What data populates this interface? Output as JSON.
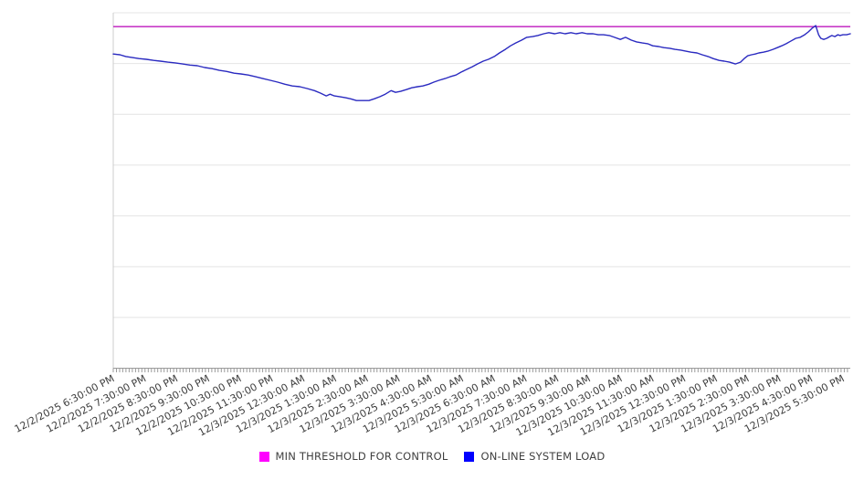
{
  "page": {
    "background": "#ffffff"
  },
  "legend": {
    "position": "bottom-center",
    "items": [
      {
        "label": "MIN THRESHOLD FOR CONTROL",
        "color": "#ff00ff"
      },
      {
        "label": "ON-LINE SYSTEM LOAD",
        "color": "#0000ff"
      }
    ]
  },
  "chart_data": {
    "type": "line",
    "title": "",
    "xlabel": "",
    "ylabel": "",
    "grid": "horizontal-only",
    "legend_position": "bottom-center",
    "colors": {
      "threshold_line": "#c73bc7",
      "load_line": "#2a2ac0",
      "gridline": "#e4e4e4",
      "axis": "#9b9b9b",
      "label_text": "#3c3c3c"
    },
    "x_axis": {
      "label_interval": "1 hour",
      "minor_ticks": "dense (~6 min)",
      "labels": [
        "12/2/2025 6:30:00 PM",
        "12/2/2025 7:30:00 PM",
        "12/2/2025 8:30:00 PM",
        "12/2/2025 9:30:00 PM",
        "12/2/2025 10:30:00 PM",
        "12/2/2025 11:30:00 PM",
        "12/3/2025 12:30:00 AM",
        "12/3/2025 1:30:00 AM",
        "12/3/2025 2:30:00 AM",
        "12/3/2025 3:30:00 AM",
        "12/3/2025 4:30:00 AM",
        "12/3/2025 5:30:00 AM",
        "12/3/2025 6:30:00 AM",
        "12/3/2025 7:30:00 AM",
        "12/3/2025 8:30:00 AM",
        "12/3/2025 9:30:00 AM",
        "12/3/2025 10:30:00 AM",
        "12/3/2025 11:30:00 AM",
        "12/3/2025 12:30:00 PM",
        "12/3/2025 1:30:00 PM",
        "12/3/2025 2:30:00 PM",
        "12/3/2025 3:30:00 PM",
        "12/3/2025 4:30:00 PM",
        "12/3/2025 5:30:00 PM"
      ]
    },
    "y_axis": {
      "tick_labels_visible": false,
      "gridline_band_count": 7,
      "units": "percent of plot height (no numeric labels shown in chart)"
    },
    "series": [
      {
        "name": "MIN THRESHOLD FOR CONTROL",
        "style": "horizontal-threshold",
        "color": "#c73bc7",
        "value_pct": 96.1
      },
      {
        "name": "ON-LINE SYSTEM LOAD",
        "style": "line",
        "color": "#2a2ac0",
        "points_x_frac_y_pct": [
          [
            0,
            88.4
          ],
          [
            0.009,
            88.2
          ],
          [
            0.017,
            87.7
          ],
          [
            0.026,
            87.4
          ],
          [
            0.035,
            87.1
          ],
          [
            0.045,
            86.9
          ],
          [
            0.055,
            86.6
          ],
          [
            0.064,
            86.4
          ],
          [
            0.074,
            86.1
          ],
          [
            0.084,
            85.9
          ],
          [
            0.094,
            85.6
          ],
          [
            0.104,
            85.3
          ],
          [
            0.114,
            85.1
          ],
          [
            0.124,
            84.6
          ],
          [
            0.134,
            84.3
          ],
          [
            0.144,
            83.8
          ],
          [
            0.154,
            83.5
          ],
          [
            0.164,
            83.0
          ],
          [
            0.173,
            82.8
          ],
          [
            0.183,
            82.5
          ],
          [
            0.193,
            82.0
          ],
          [
            0.203,
            81.5
          ],
          [
            0.213,
            81.0
          ],
          [
            0.223,
            80.5
          ],
          [
            0.233,
            79.9
          ],
          [
            0.243,
            79.4
          ],
          [
            0.253,
            79.2
          ],
          [
            0.263,
            78.7
          ],
          [
            0.273,
            78.1
          ],
          [
            0.281,
            77.4
          ],
          [
            0.289,
            76.6
          ],
          [
            0.294,
            77.1
          ],
          [
            0.3,
            76.6
          ],
          [
            0.307,
            76.4
          ],
          [
            0.315,
            76.1
          ],
          [
            0.322,
            75.8
          ],
          [
            0.33,
            75.3
          ],
          [
            0.338,
            75.3
          ],
          [
            0.347,
            75.3
          ],
          [
            0.354,
            75.8
          ],
          [
            0.362,
            76.4
          ],
          [
            0.369,
            77.1
          ],
          [
            0.377,
            78.1
          ],
          [
            0.383,
            77.6
          ],
          [
            0.39,
            77.9
          ],
          [
            0.398,
            78.4
          ],
          [
            0.405,
            78.9
          ],
          [
            0.413,
            79.2
          ],
          [
            0.42,
            79.4
          ],
          [
            0.428,
            79.9
          ],
          [
            0.435,
            80.5
          ],
          [
            0.442,
            81.0
          ],
          [
            0.45,
            81.5
          ],
          [
            0.457,
            82.0
          ],
          [
            0.465,
            82.5
          ],
          [
            0.472,
            83.3
          ],
          [
            0.48,
            84.1
          ],
          [
            0.487,
            84.8
          ],
          [
            0.494,
            85.6
          ],
          [
            0.502,
            86.4
          ],
          [
            0.509,
            86.9
          ],
          [
            0.517,
            87.7
          ],
          [
            0.524,
            88.7
          ],
          [
            0.532,
            89.7
          ],
          [
            0.539,
            90.7
          ],
          [
            0.546,
            91.5
          ],
          [
            0.554,
            92.3
          ],
          [
            0.561,
            93.1
          ],
          [
            0.569,
            93.3
          ],
          [
            0.576,
            93.6
          ],
          [
            0.584,
            94.1
          ],
          [
            0.591,
            94.4
          ],
          [
            0.599,
            94.1
          ],
          [
            0.606,
            94.4
          ],
          [
            0.613,
            94.1
          ],
          [
            0.621,
            94.4
          ],
          [
            0.628,
            94.1
          ],
          [
            0.636,
            94.4
          ],
          [
            0.643,
            94.1
          ],
          [
            0.651,
            94.1
          ],
          [
            0.658,
            93.8
          ],
          [
            0.665,
            93.8
          ],
          [
            0.673,
            93.6
          ],
          [
            0.68,
            93.1
          ],
          [
            0.688,
            92.5
          ],
          [
            0.695,
            93.1
          ],
          [
            0.703,
            92.3
          ],
          [
            0.71,
            91.8
          ],
          [
            0.718,
            91.5
          ],
          [
            0.725,
            91.3
          ],
          [
            0.732,
            90.7
          ],
          [
            0.74,
            90.5
          ],
          [
            0.747,
            90.2
          ],
          [
            0.755,
            90.0
          ],
          [
            0.762,
            89.7
          ],
          [
            0.77,
            89.5
          ],
          [
            0.777,
            89.2
          ],
          [
            0.784,
            88.9
          ],
          [
            0.792,
            88.7
          ],
          [
            0.799,
            88.2
          ],
          [
            0.807,
            87.7
          ],
          [
            0.814,
            87.1
          ],
          [
            0.822,
            86.6
          ],
          [
            0.829,
            86.4
          ],
          [
            0.836,
            86.1
          ],
          [
            0.844,
            85.6
          ],
          [
            0.851,
            86.1
          ],
          [
            0.856,
            87.1
          ],
          [
            0.861,
            87.9
          ],
          [
            0.866,
            88.2
          ],
          [
            0.871,
            88.4
          ],
          [
            0.876,
            88.7
          ],
          [
            0.882,
            88.9
          ],
          [
            0.888,
            89.2
          ],
          [
            0.895,
            89.7
          ],
          [
            0.901,
            90.2
          ],
          [
            0.907,
            90.7
          ],
          [
            0.913,
            91.3
          ],
          [
            0.919,
            92.0
          ],
          [
            0.926,
            92.8
          ],
          [
            0.932,
            93.1
          ],
          [
            0.938,
            93.8
          ],
          [
            0.943,
            94.6
          ],
          [
            0.948,
            95.6
          ],
          [
            0.953,
            96.4
          ],
          [
            0.957,
            93.8
          ],
          [
            0.96,
            92.8
          ],
          [
            0.964,
            92.5
          ],
          [
            0.968,
            92.8
          ],
          [
            0.972,
            93.3
          ],
          [
            0.975,
            93.6
          ],
          [
            0.979,
            93.3
          ],
          [
            0.983,
            93.8
          ],
          [
            0.986,
            93.6
          ],
          [
            0.99,
            93.8
          ],
          [
            0.995,
            93.8
          ],
          [
            1,
            94.1
          ]
        ]
      }
    ]
  }
}
